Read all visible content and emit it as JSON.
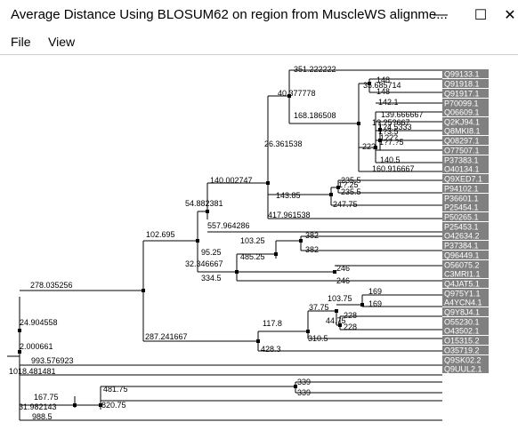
{
  "window": {
    "title": "Average Distance Using BLOSUM62 on region from MuscleWS alignme...",
    "minimize_glyph": "—",
    "maximize_glyph": "☐",
    "close_glyph": "✕"
  },
  "menu": {
    "file": "File",
    "view": "View"
  },
  "tree": {
    "leaves": [
      "Q99133.1",
      "Q91918.1",
      "Q91917.1",
      "P70099.1",
      "Q06609.1",
      "Q2KJ94.1",
      "Q8MKI8.1",
      "Q08297.1",
      "O77507.1",
      "P37383.1",
      "O40134.1",
      "Q9XED7.1",
      "P94102.1",
      "P36601.1",
      "P25454.1",
      "P50265.1",
      "P25453.1",
      "O42634.2",
      "P37384.1",
      "Q96449.1",
      "O56075.2",
      "C3MRI1.1",
      "Q4JAT5.1",
      "Q975Y1.1",
      "A4YCN4.1",
      "Q9Y8J4.1",
      "O55230.1",
      "O43502.1",
      "O15315.2",
      "O35719.2",
      "Q9SK02.2",
      "Q9UUL2.1"
    ],
    "distances": [
      "351.222222",
      "35.685714",
      "148",
      "148",
      "142.1",
      "139.666667",
      "1?.?5?667",
      "1?4.5333",
      "1?3.5",
      "1???",
      "1?7.?5",
      "22?",
      "140.5",
      "160.916667",
      "40.377778",
      "168.186508",
      "26.361538",
      "235.5",
      "235.5",
      "1?.25",
      "143.85",
      "247.75",
      "417.961538",
      "140.002747",
      "54.882381",
      "557.964286",
      "102.695",
      "382",
      "382",
      "103.25",
      "485.25",
      "95.25",
      "32.346667",
      "334.5",
      "246",
      "246",
      "278.035256",
      "169",
      "169",
      "103.75",
      "228",
      "228",
      "44.75",
      "37.75",
      "117.8",
      "310.5",
      "428.3",
      "287.241667",
      "24.904558",
      "2.000661",
      "993.576923",
      "1018.481481",
      "339",
      "339",
      "481.75",
      "820.75",
      "167.75",
      "31.982143",
      "988.5"
    ]
  }
}
